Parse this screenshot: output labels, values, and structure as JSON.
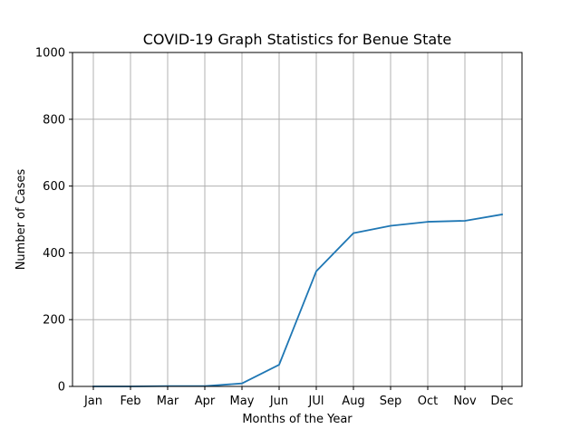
{
  "chart_data": {
    "type": "line",
    "title": "COVID-19 Graph Statistics for Benue State",
    "xlabel": "Months of the Year",
    "ylabel": "Number of Cases",
    "categories": [
      "Jan",
      "Feb",
      "Mar",
      "Apr",
      "May",
      "Jun",
      "JUl",
      "Aug",
      "Sep",
      "Oct",
      "Nov",
      "Dec"
    ],
    "series": [
      {
        "values": [
          0,
          0,
          1,
          1,
          9,
          65,
          345,
          459,
          481,
          493,
          496,
          515
        ],
        "color": "#1f77b4"
      }
    ],
    "ylim": [
      0,
      1000
    ],
    "yticks": [
      "0",
      "200",
      "400",
      "600",
      "800",
      "1000"
    ],
    "grid": true,
    "grid_color": "#b0b0b0"
  }
}
